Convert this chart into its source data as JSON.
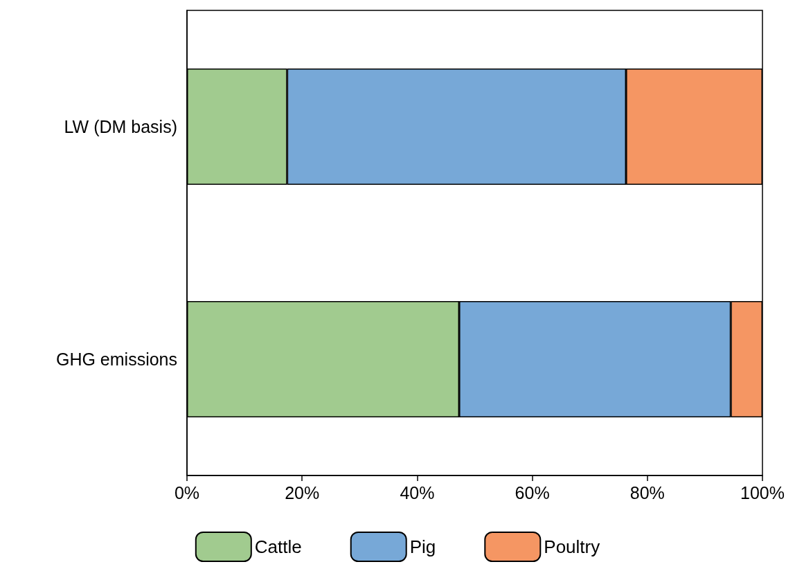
{
  "chart_data": {
    "type": "bar",
    "orientation": "horizontal",
    "stacked": true,
    "categories": [
      "LW (DM basis)",
      "GHG emissions"
    ],
    "series": [
      {
        "name": "Cattle",
        "color": "#a1cb8f",
        "values": [
          17.4,
          47.3
        ]
      },
      {
        "name": "Pig",
        "color": "#77a8d7",
        "values": [
          58.9,
          47.2
        ]
      },
      {
        "name": "Poultry",
        "color": "#f59663",
        "values": [
          23.7,
          5.5
        ]
      }
    ],
    "xlim": [
      0,
      100
    ],
    "xticks": [
      {
        "value": 0,
        "label": "0%"
      },
      {
        "value": 20,
        "label": "20%"
      },
      {
        "value": 40,
        "label": "40%"
      },
      {
        "value": 60,
        "label": "60%"
      },
      {
        "value": 80,
        "label": "80%"
      },
      {
        "value": 100,
        "label": "100%"
      }
    ],
    "legend": "bottom"
  }
}
